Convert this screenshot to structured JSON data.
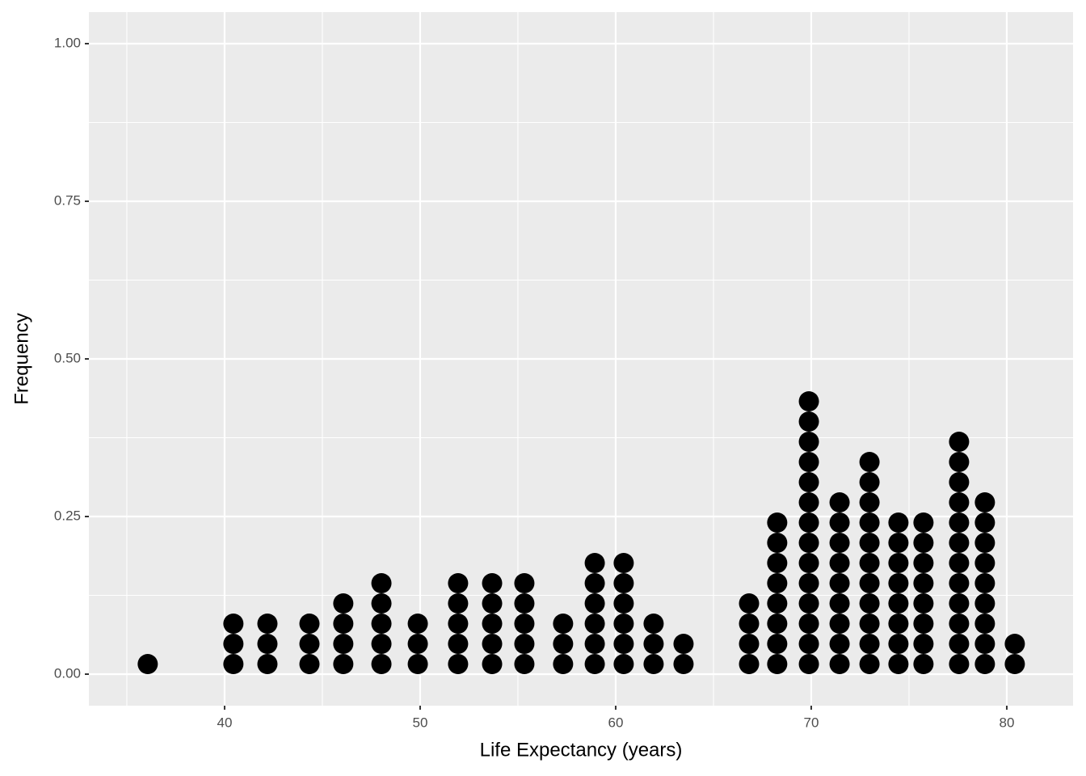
{
  "chart_data": {
    "type": "dotplot",
    "x_label": "Life Expectancy (years)",
    "y_label": "Frequency",
    "x": [
      36.07,
      40.45,
      42.19,
      44.34,
      46.07,
      48.02,
      49.88,
      51.94,
      53.68,
      55.33,
      57.31,
      58.93,
      60.41,
      61.94,
      63.47,
      66.82,
      68.26,
      69.88,
      71.45,
      72.98,
      74.46,
      75.74,
      77.56,
      78.88,
      80.41
    ],
    "counts": [
      1,
      3,
      3,
      3,
      4,
      5,
      3,
      5,
      5,
      5,
      3,
      6,
      6,
      3,
      2,
      4,
      8,
      14,
      9,
      11,
      8,
      8,
      12,
      9,
      2
    ],
    "color": "#000000",
    "xlim": [
      33.06,
      83.39
    ],
    "xticks": [
      40,
      50,
      60,
      70,
      80
    ],
    "ylim": [
      -0.05,
      1.05
    ],
    "yticks": [
      {
        "value": 0,
        "label": "0.00"
      },
      {
        "value": 0.25,
        "label": "0.25"
      },
      {
        "value": 0.5,
        "label": "0.50"
      },
      {
        "value": 0.75,
        "label": "0.75"
      },
      {
        "value": 1,
        "label": "1.00"
      }
    ],
    "grid": true
  }
}
